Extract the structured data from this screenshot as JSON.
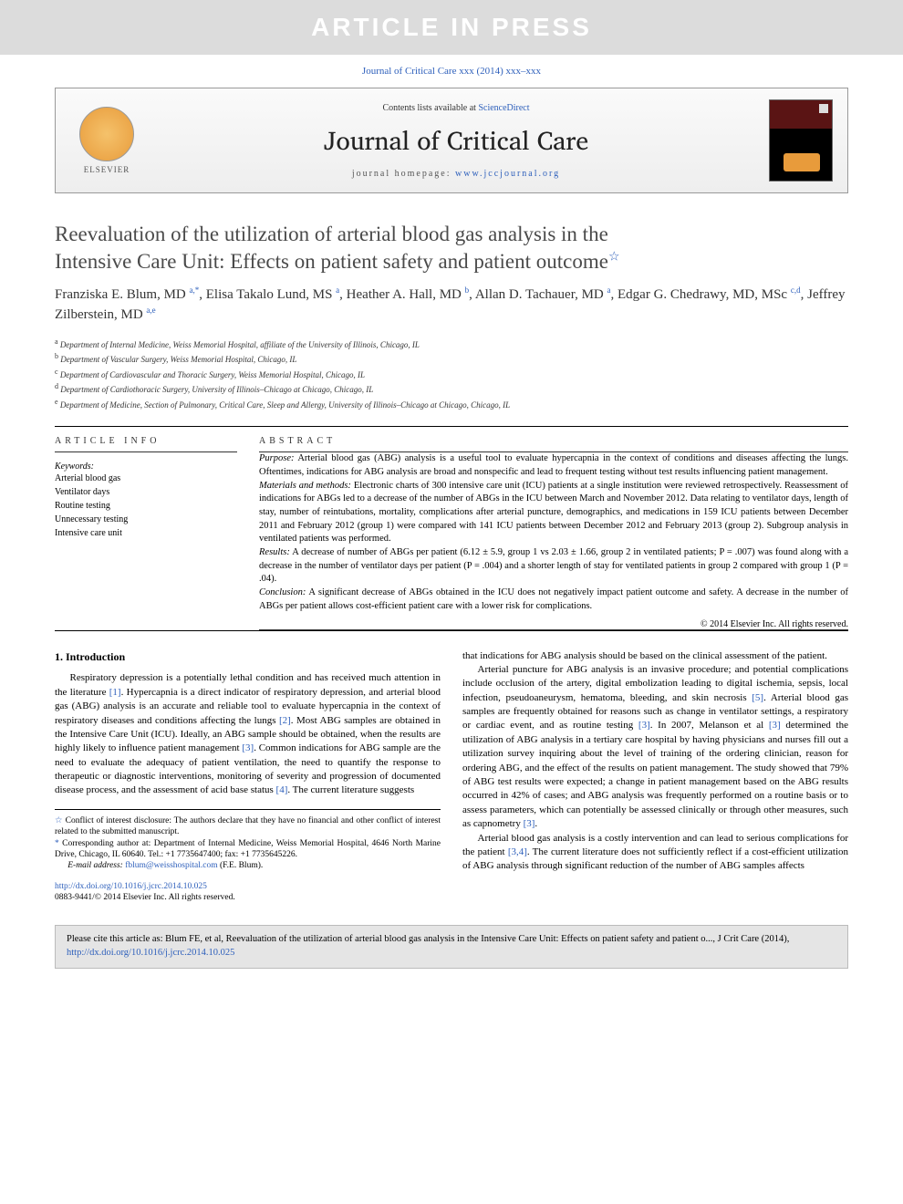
{
  "banner": "ARTICLE IN PRESS",
  "journal_ref": "Journal of Critical Care xxx (2014) xxx–xxx",
  "header": {
    "contents_prefix": "Contents lists available at ",
    "contents_link": "ScienceDirect",
    "journal_name": "Journal of Critical Care",
    "homepage_prefix": "journal homepage: ",
    "homepage_url": "www.jccjournal.org",
    "publisher_name": "ELSEVIER"
  },
  "title_line1": "Reevaluation of the utilization of arterial blood gas analysis in the",
  "title_line2": "Intensive Care Unit: Effects on patient safety and patient outcome",
  "title_star": "☆",
  "authors_html": "Franziska E. Blum, MD <sup>a,*</sup>, Elisa Takalo Lund, MS <sup>a</sup>, Heather A. Hall, MD <sup>b</sup>, Allan D. Tachauer, MD <sup>a</sup>, Edgar G. Chedrawy, MD, MSc <sup>c,d</sup>, Jeffrey Zilberstein, MD <sup>a,e</sup>",
  "affiliations": [
    {
      "sup": "a",
      "text": "Department of Internal Medicine, Weiss Memorial Hospital, affiliate of the University of Illinois, Chicago, IL"
    },
    {
      "sup": "b",
      "text": "Department of Vascular Surgery, Weiss Memorial Hospital, Chicago, IL"
    },
    {
      "sup": "c",
      "text": "Department of Cardiovascular and Thoracic Surgery, Weiss Memorial Hospital, Chicago, IL"
    },
    {
      "sup": "d",
      "text": "Department of Cardiothoracic Surgery, University of Illinois–Chicago at Chicago, Chicago, IL"
    },
    {
      "sup": "e",
      "text": "Department of Medicine, Section of Pulmonary, Critical Care, Sleep and Allergy, University of Illinois–Chicago at Chicago, Chicago, IL"
    }
  ],
  "article_info_heading": "article info",
  "abstract_heading": "abstract",
  "keywords_label": "Keywords:",
  "keywords": [
    "Arterial blood gas",
    "Ventilator days",
    "Routine testing",
    "Unnecessary testing",
    "Intensive care unit"
  ],
  "abstract": {
    "purpose_label": "Purpose:",
    "purpose": " Arterial blood gas (ABG) analysis is a useful tool to evaluate hypercapnia in the context of conditions and diseases affecting the lungs. Oftentimes, indications for ABG analysis are broad and nonspecific and lead to frequent testing without test results influencing patient management.",
    "methods_label": "Materials and methods:",
    "methods": " Electronic charts of 300 intensive care unit (ICU) patients at a single institution were reviewed retrospectively. Reassessment of indications for ABGs led to a decrease of the number of ABGs in the ICU between March and November 2012. Data relating to ventilator days, length of stay, number of reintubations, mortality, complications after arterial puncture, demographics, and medications in 159 ICU patients between December 2011 and February 2012 (group 1) were compared with 141 ICU patients between December 2012 and February 2013 (group 2). Subgroup analysis in ventilated patients was performed.",
    "results_label": "Results:",
    "results": " A decrease of number of ABGs per patient (6.12 ± 5.9, group 1 vs 2.03 ± 1.66, group 2 in ventilated patients; P = .007) was found along with a decrease in the number of ventilator days per patient (P = .004) and a shorter length of stay for ventilated patients in group 2 compared with group 1 (P = .04).",
    "conclusion_label": "Conclusion:",
    "conclusion": " A significant decrease of ABGs obtained in the ICU does not negatively impact patient outcome and safety. A decrease in the number of ABGs per patient allows cost-efficient patient care with a lower risk for complications."
  },
  "abstract_copyright": "© 2014 Elsevier Inc. All rights reserved.",
  "intro_heading": "1. Introduction",
  "intro_p1_a": "Respiratory depression is a potentially lethal condition and has received much attention in the literature ",
  "intro_ref1": "[1]",
  "intro_p1_b": ". Hypercapnia is a direct indicator of respiratory depression, and arterial blood gas (ABG) analysis is an accurate and reliable tool to evaluate hypercapnia in the context of respiratory diseases and conditions affecting the lungs ",
  "intro_ref2": "[2]",
  "intro_p1_c": ". Most ABG samples are obtained in the Intensive Care Unit (ICU). Ideally, an ABG sample should be obtained, when the results are highly likely to influence patient management ",
  "intro_ref3": "[3]",
  "intro_p1_d": ". Common indications for ABG sample are the need to evaluate the adequacy of patient ventilation, the need to quantify the response to therapeutic or diagnostic interventions, monitoring of severity and progression of documented disease process, and the assessment of acid base status ",
  "intro_ref4": "[4]",
  "intro_p1_e": ". The current literature suggests",
  "intro_p2_a": "that indications for ABG analysis should be based on the clinical assessment of the patient.",
  "intro_p3_a": "Arterial puncture for ABG analysis is an invasive procedure; and potential complications include occlusion of the artery, digital embolization leading to digital ischemia, sepsis, local infection, pseudoaneurysm, hematoma, bleeding, and skin necrosis ",
  "intro_ref5": "[5]",
  "intro_p3_b": ". Arterial blood gas samples are frequently obtained for reasons such as change in ventilator settings, a respiratory or cardiac event, and as routine testing ",
  "intro_ref3b": "[3]",
  "intro_p3_c": ". In 2007, Melanson et al ",
  "intro_ref3c": "[3]",
  "intro_p3_d": " determined the utilization of ABG analysis in a tertiary care hospital by having physicians and nurses fill out a utilization survey inquiring about the level of training of the ordering clinician, reason for ordering ABG, and the effect of the results on patient management. The study showed that 79% of ABG test results were expected; a change in patient management based on the ABG results occurred in 42% of cases; and ABG analysis was frequently performed on a routine basis or to assess parameters, which can potentially be assessed clinically or through other measures, such as capnometry ",
  "intro_ref3d": "[3]",
  "intro_p3_e": ".",
  "intro_p4_a": "Arterial blood gas analysis is a costly intervention and can lead to serious complications for the patient ",
  "intro_ref34": "[3,4]",
  "intro_p4_b": ". The current literature does not sufficiently reflect if a cost-efficient utilization of ABG analysis through significant reduction of the number of ABG samples affects",
  "footnotes": {
    "conflict_star": "☆",
    "conflict": " Conflict of interest disclosure: The authors declare that they have no financial and other conflict of interest related to the submitted manuscript.",
    "corr_star": "*",
    "corr": " Corresponding author at: Department of Internal Medicine, Weiss Memorial Hospital, 4646 North Marine Drive, Chicago, IL 60640. Tel.: +1 7735647400; fax: +1 7735645226.",
    "email_label": "E-mail address: ",
    "email": "fblum@weisshospital.com",
    "email_suffix": " (F.E. Blum)."
  },
  "doi": "http://dx.doi.org/10.1016/j.jcrc.2014.10.025",
  "issn_copyright": "0883-9441/© 2014 Elsevier Inc. All rights reserved.",
  "cite_box_a": "Please cite this article as: Blum FE, et al, Reevaluation of the utilization of arterial blood gas analysis in the Intensive Care Unit: Effects on patient safety and patient o..., J Crit Care (2014), ",
  "cite_box_link": "http://dx.doi.org/10.1016/j.jcrc.2014.10.025",
  "colors": {
    "link": "#2d5fbb",
    "banner_bg": "#dcdcdc",
    "cite_bg": "#e5e5e5"
  }
}
